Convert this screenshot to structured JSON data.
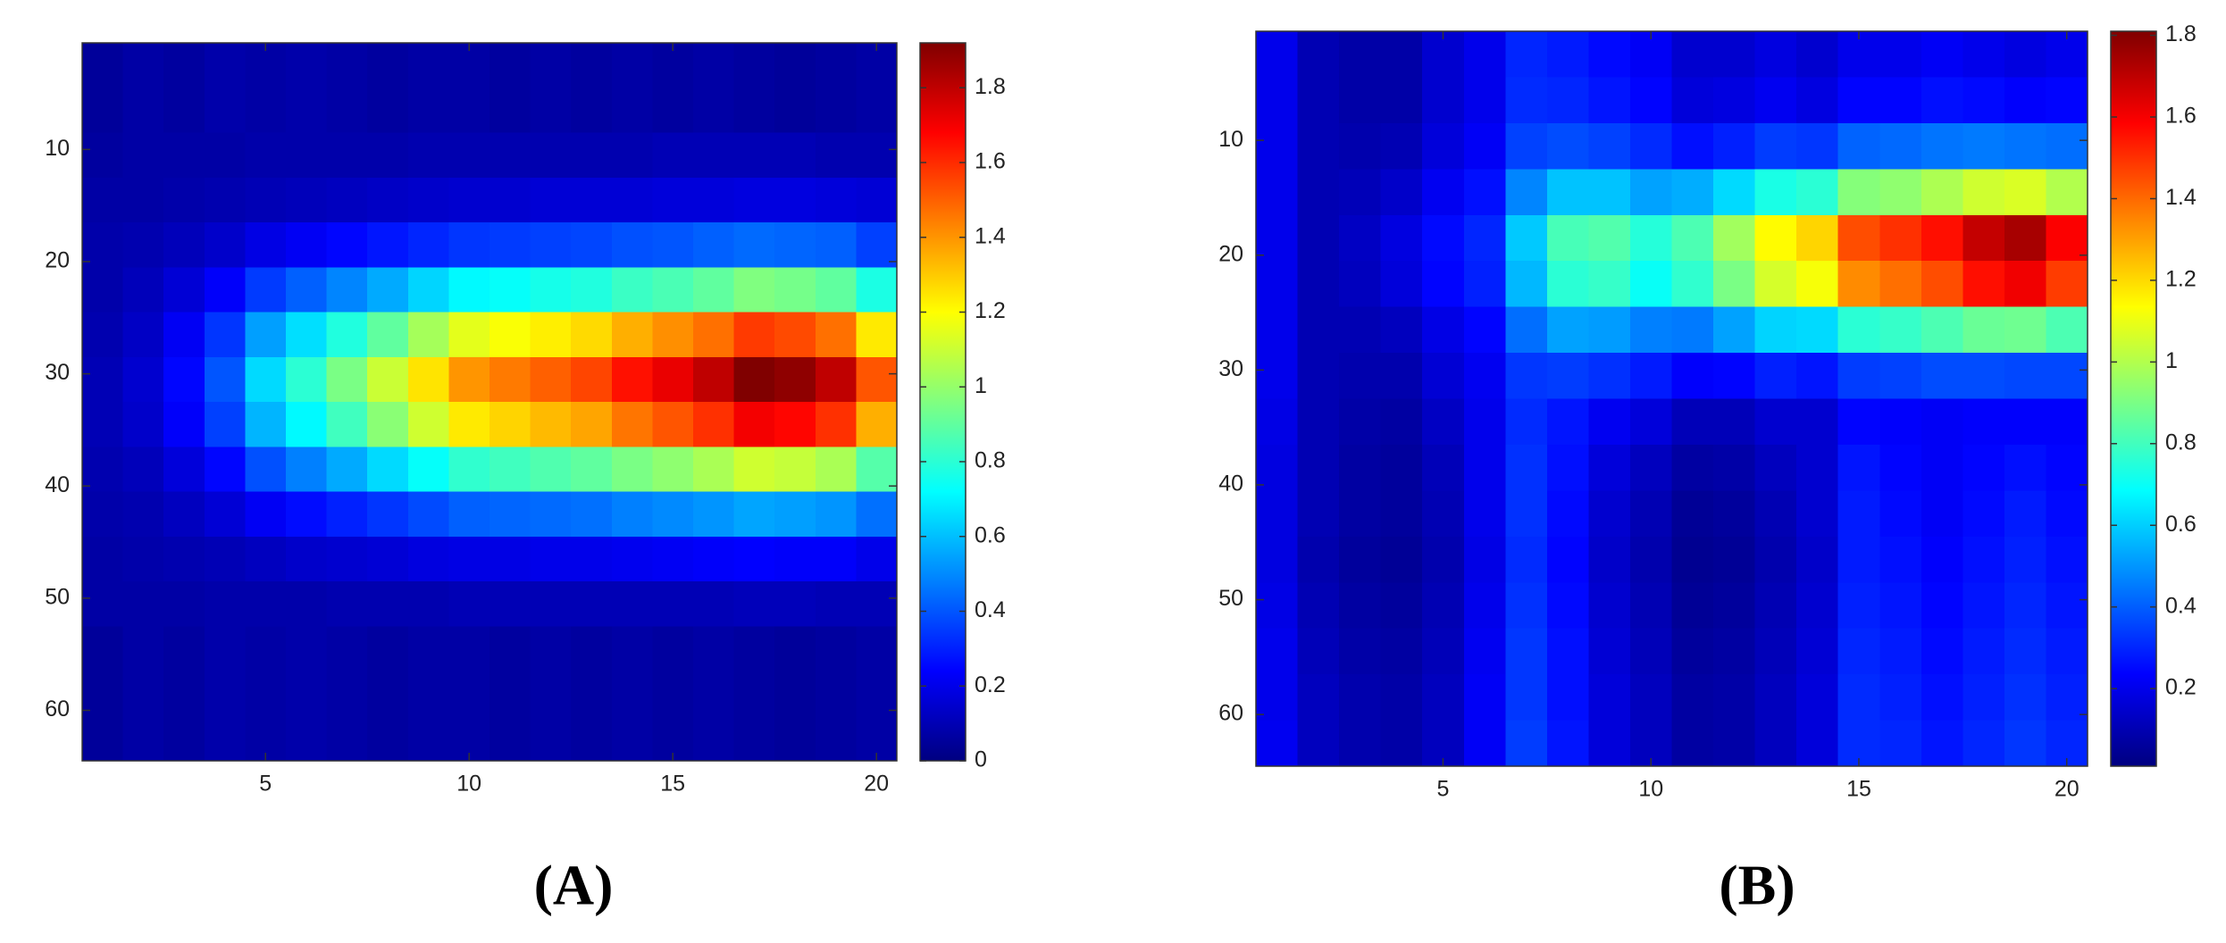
{
  "chart_data": [
    {
      "type": "heatmap",
      "label": "(A)",
      "colormap": "jet",
      "x": [
        1,
        2,
        3,
        4,
        5,
        6,
        7,
        8,
        9,
        10,
        11,
        12,
        13,
        14,
        15,
        16,
        17,
        18,
        19,
        20
      ],
      "y": [
        2.5,
        6.5,
        10.5,
        14.5,
        18.5,
        22.5,
        26.5,
        30.5,
        34.5,
        38.5,
        42.5,
        46.5,
        50.5,
        54.5,
        58.5,
        62.5
      ],
      "z": [
        [
          0.05,
          0.07,
          0.06,
          0.08,
          0.07,
          0.08,
          0.07,
          0.06,
          0.07,
          0.07,
          0.06,
          0.07,
          0.06,
          0.07,
          0.06,
          0.07,
          0.06,
          0.05,
          0.06,
          0.07
        ],
        [
          0.05,
          0.07,
          0.06,
          0.08,
          0.07,
          0.08,
          0.07,
          0.06,
          0.07,
          0.07,
          0.06,
          0.07,
          0.06,
          0.07,
          0.06,
          0.07,
          0.06,
          0.05,
          0.06,
          0.07
        ],
        [
          0.06,
          0.07,
          0.07,
          0.07,
          0.08,
          0.08,
          0.08,
          0.08,
          0.09,
          0.09,
          0.09,
          0.09,
          0.09,
          0.09,
          0.1,
          0.1,
          0.1,
          0.1,
          0.09,
          0.09
        ],
        [
          0.07,
          0.07,
          0.08,
          0.09,
          0.1,
          0.11,
          0.12,
          0.13,
          0.14,
          0.15,
          0.15,
          0.16,
          0.16,
          0.16,
          0.17,
          0.17,
          0.18,
          0.18,
          0.17,
          0.16
        ],
        [
          0.08,
          0.09,
          0.11,
          0.14,
          0.19,
          0.22,
          0.25,
          0.28,
          0.31,
          0.34,
          0.35,
          0.36,
          0.37,
          0.39,
          0.4,
          0.42,
          0.44,
          0.43,
          0.42,
          0.36
        ],
        [
          0.08,
          0.11,
          0.16,
          0.23,
          0.35,
          0.42,
          0.49,
          0.56,
          0.64,
          0.71,
          0.73,
          0.76,
          0.78,
          0.83,
          0.86,
          0.9,
          0.96,
          0.94,
          0.9,
          0.77
        ],
        [
          0.09,
          0.13,
          0.22,
          0.34,
          0.54,
          0.66,
          0.78,
          0.9,
          1.03,
          1.15,
          1.19,
          1.23,
          1.27,
          1.35,
          1.41,
          1.47,
          1.57,
          1.54,
          1.47,
          1.24
        ],
        [
          0.1,
          0.15,
          0.25,
          0.4,
          0.65,
          0.8,
          0.95,
          1.1,
          1.25,
          1.4,
          1.45,
          1.5,
          1.55,
          1.65,
          1.72,
          1.8,
          1.92,
          1.89,
          1.8,
          1.52
        ],
        [
          0.1,
          0.14,
          0.23,
          0.36,
          0.58,
          0.71,
          0.84,
          0.98,
          1.11,
          1.24,
          1.28,
          1.33,
          1.37,
          1.46,
          1.52,
          1.59,
          1.7,
          1.67,
          1.59,
          1.35
        ],
        [
          0.09,
          0.11,
          0.17,
          0.25,
          0.39,
          0.48,
          0.56,
          0.65,
          0.73,
          0.81,
          0.84,
          0.87,
          0.9,
          0.95,
          0.99,
          1.04,
          1.11,
          1.09,
          1.04,
          0.88
        ],
        [
          0.08,
          0.09,
          0.12,
          0.16,
          0.22,
          0.26,
          0.3,
          0.34,
          0.38,
          0.42,
          0.43,
          0.44,
          0.45,
          0.48,
          0.5,
          0.52,
          0.55,
          0.54,
          0.52,
          0.45
        ],
        [
          0.07,
          0.08,
          0.09,
          0.1,
          0.12,
          0.14,
          0.15,
          0.16,
          0.18,
          0.19,
          0.19,
          0.2,
          0.2,
          0.21,
          0.22,
          0.23,
          0.24,
          0.23,
          0.23,
          0.2
        ],
        [
          0.07,
          0.07,
          0.07,
          0.08,
          0.08,
          0.08,
          0.09,
          0.09,
          0.09,
          0.1,
          0.1,
          0.1,
          0.1,
          0.1,
          0.1,
          0.1,
          0.11,
          0.11,
          0.1,
          0.1
        ],
        [
          0.05,
          0.07,
          0.06,
          0.08,
          0.07,
          0.08,
          0.07,
          0.06,
          0.07,
          0.07,
          0.06,
          0.07,
          0.06,
          0.07,
          0.06,
          0.07,
          0.06,
          0.05,
          0.06,
          0.07
        ],
        [
          0.05,
          0.07,
          0.06,
          0.08,
          0.07,
          0.08,
          0.07,
          0.06,
          0.07,
          0.07,
          0.06,
          0.07,
          0.06,
          0.07,
          0.06,
          0.07,
          0.06,
          0.05,
          0.06,
          0.07
        ],
        [
          0.05,
          0.07,
          0.06,
          0.08,
          0.07,
          0.08,
          0.07,
          0.06,
          0.07,
          0.07,
          0.06,
          0.07,
          0.06,
          0.07,
          0.06,
          0.07,
          0.06,
          0.05,
          0.06,
          0.07
        ]
      ],
      "xlim": [
        0.5,
        20.5
      ],
      "ylim": [
        64.5,
        0.5
      ],
      "xticks": [
        5,
        10,
        15,
        20
      ],
      "yticks": [
        10,
        20,
        30,
        40,
        50,
        60
      ],
      "clim": [
        0,
        1.92
      ],
      "cticks": [
        0,
        0.2,
        0.4,
        0.6,
        0.8,
        1,
        1.2,
        1.4,
        1.6,
        1.8
      ]
    },
    {
      "type": "heatmap",
      "label": "(B)",
      "colormap": "jet",
      "x": [
        1,
        2,
        3,
        4,
        5,
        6,
        7,
        8,
        9,
        10,
        11,
        12,
        13,
        14,
        15,
        16,
        17,
        18,
        19,
        20
      ],
      "y": [
        2.5,
        6.5,
        10.5,
        14.5,
        18.5,
        22.5,
        26.5,
        30.5,
        34.5,
        38.5,
        42.5,
        46.5,
        50.5,
        54.5,
        58.5,
        62.5
      ],
      "z": [
        [
          0.2,
          0.1,
          0.08,
          0.08,
          0.15,
          0.2,
          0.3,
          0.28,
          0.25,
          0.22,
          0.15,
          0.15,
          0.18,
          0.15,
          0.2,
          0.2,
          0.22,
          0.2,
          0.18,
          0.2
        ],
        [
          0.2,
          0.1,
          0.08,
          0.08,
          0.15,
          0.2,
          0.31,
          0.3,
          0.27,
          0.24,
          0.17,
          0.18,
          0.21,
          0.18,
          0.24,
          0.24,
          0.26,
          0.25,
          0.23,
          0.24
        ],
        [
          0.2,
          0.1,
          0.09,
          0.1,
          0.17,
          0.22,
          0.35,
          0.37,
          0.35,
          0.31,
          0.26,
          0.29,
          0.34,
          0.33,
          0.41,
          0.42,
          0.44,
          0.45,
          0.44,
          0.43
        ],
        [
          0.2,
          0.1,
          0.11,
          0.14,
          0.21,
          0.26,
          0.47,
          0.58,
          0.58,
          0.52,
          0.54,
          0.62,
          0.73,
          0.76,
          0.92,
          0.94,
          0.99,
          1.05,
          1.07,
          1.0
        ],
        [
          0.2,
          0.1,
          0.13,
          0.18,
          0.25,
          0.3,
          0.59,
          0.81,
          0.83,
          0.75,
          0.82,
          0.97,
          1.14,
          1.21,
          1.45,
          1.5,
          1.56,
          1.69,
          1.74,
          1.59
        ],
        [
          0.2,
          0.1,
          0.12,
          0.17,
          0.24,
          0.29,
          0.56,
          0.76,
          0.78,
          0.7,
          0.77,
          0.9,
          1.06,
          1.12,
          1.34,
          1.39,
          1.45,
          1.56,
          1.61,
          1.48
        ],
        [
          0.2,
          0.1,
          0.1,
          0.12,
          0.19,
          0.24,
          0.43,
          0.52,
          0.51,
          0.46,
          0.45,
          0.52,
          0.61,
          0.62,
          0.76,
          0.78,
          0.82,
          0.87,
          0.88,
          0.82
        ],
        [
          0.2,
          0.1,
          0.09,
          0.09,
          0.16,
          0.21,
          0.33,
          0.34,
          0.32,
          0.28,
          0.23,
          0.24,
          0.29,
          0.27,
          0.34,
          0.35,
          0.37,
          0.37,
          0.36,
          0.36
        ],
        [
          0.19,
          0.1,
          0.08,
          0.07,
          0.13,
          0.2,
          0.31,
          0.27,
          0.21,
          0.17,
          0.11,
          0.11,
          0.15,
          0.15,
          0.24,
          0.23,
          0.22,
          0.23,
          0.23,
          0.23
        ],
        [
          0.18,
          0.1,
          0.07,
          0.06,
          0.11,
          0.2,
          0.32,
          0.26,
          0.17,
          0.12,
          0.07,
          0.08,
          0.12,
          0.15,
          0.27,
          0.24,
          0.22,
          0.24,
          0.26,
          0.24
        ],
        [
          0.18,
          0.1,
          0.07,
          0.06,
          0.1,
          0.2,
          0.32,
          0.25,
          0.15,
          0.1,
          0.05,
          0.06,
          0.1,
          0.15,
          0.28,
          0.25,
          0.22,
          0.25,
          0.28,
          0.25
        ],
        [
          0.18,
          0.09,
          0.06,
          0.05,
          0.09,
          0.19,
          0.31,
          0.24,
          0.14,
          0.09,
          0.04,
          0.05,
          0.09,
          0.14,
          0.28,
          0.26,
          0.23,
          0.26,
          0.29,
          0.26
        ],
        [
          0.19,
          0.1,
          0.07,
          0.06,
          0.1,
          0.2,
          0.32,
          0.25,
          0.15,
          0.1,
          0.05,
          0.06,
          0.1,
          0.15,
          0.29,
          0.27,
          0.24,
          0.27,
          0.3,
          0.27
        ],
        [
          0.2,
          0.11,
          0.08,
          0.07,
          0.11,
          0.21,
          0.33,
          0.26,
          0.16,
          0.11,
          0.06,
          0.07,
          0.11,
          0.16,
          0.3,
          0.28,
          0.25,
          0.28,
          0.31,
          0.28
        ],
        [
          0.2,
          0.12,
          0.09,
          0.08,
          0.12,
          0.22,
          0.33,
          0.26,
          0.17,
          0.12,
          0.07,
          0.08,
          0.12,
          0.17,
          0.31,
          0.29,
          0.26,
          0.29,
          0.32,
          0.29
        ],
        [
          0.21,
          0.12,
          0.09,
          0.08,
          0.12,
          0.22,
          0.34,
          0.27,
          0.17,
          0.12,
          0.07,
          0.08,
          0.12,
          0.17,
          0.31,
          0.3,
          0.27,
          0.3,
          0.33,
          0.3
        ]
      ],
      "xlim": [
        0.5,
        20.5
      ],
      "ylim": [
        64.5,
        0.5
      ],
      "xticks": [
        5,
        10,
        15,
        20
      ],
      "yticks": [
        10,
        20,
        30,
        40,
        50,
        60
      ],
      "clim": [
        0.01,
        1.81
      ],
      "cticks": [
        0.2,
        0.4,
        0.6,
        0.8,
        1,
        1.2,
        1.4,
        1.6,
        1.8
      ]
    }
  ]
}
